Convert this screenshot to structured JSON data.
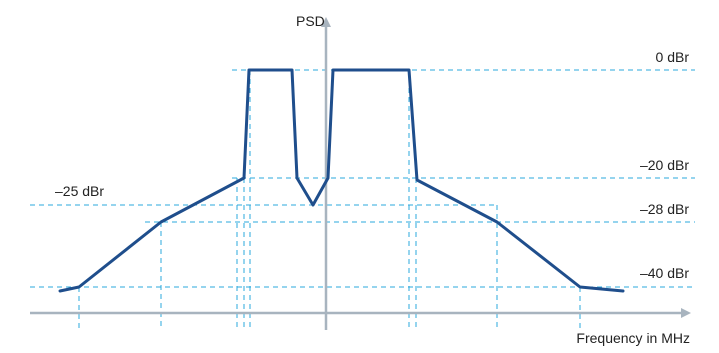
{
  "labels": {
    "y_axis": "PSD",
    "x_axis": "Frequency in MHz",
    "level_0": "0 dBr",
    "level_20": "–20 dBr",
    "level_25": "–25 dBr",
    "level_28": "–28 dBr",
    "level_40": "–40 dBr"
  },
  "colors": {
    "axis": "#a8b4bf",
    "mask": "#1f4e8c",
    "guide": "#2ba8dc"
  }
}
